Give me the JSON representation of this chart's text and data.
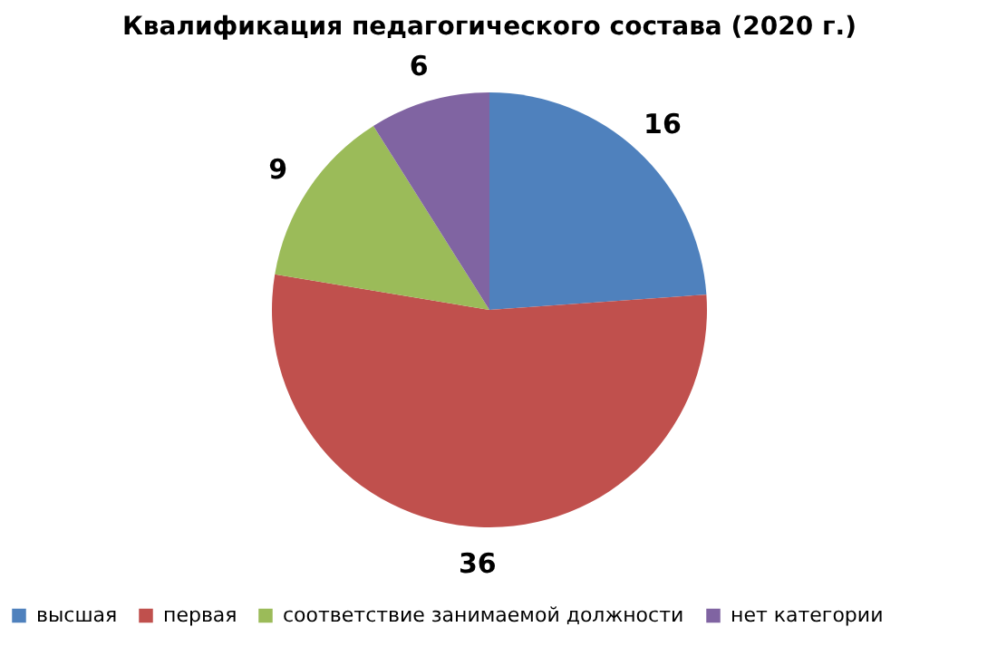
{
  "chart_data": {
    "type": "pie",
    "title": "Квалификация педагогического состава (2020 г.)",
    "categories": [
      "высшая",
      "первая",
      "соответствие занимаемой должности",
      "нет категории"
    ],
    "values": [
      16,
      36,
      9,
      6
    ],
    "colors": [
      "#4f81bd",
      "#c0504d",
      "#9bbb59",
      "#8064a2"
    ],
    "data_labels": true,
    "legend": "bottom"
  }
}
